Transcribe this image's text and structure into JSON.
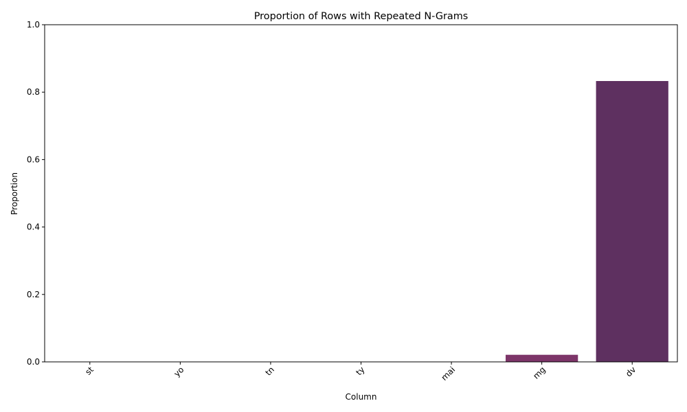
{
  "chart_data": {
    "type": "bar",
    "title": "Proportion of Rows with Repeated N-Grams",
    "xlabel": "Column",
    "ylabel": "Proportion",
    "categories": [
      "st",
      "yo",
      "tn",
      "ty",
      "mai",
      "mg",
      "dv"
    ],
    "values": [
      0.0,
      0.0,
      0.0,
      0.0,
      0.0,
      0.021,
      0.833
    ],
    "ylim": [
      0,
      1.0
    ],
    "yticks": [
      "0.0",
      "0.2",
      "0.4",
      "0.6",
      "0.8",
      "1.0"
    ],
    "bar_colors": [
      "#1a1530",
      "#2e1c45",
      "#421f55",
      "#55245f",
      "#692a66",
      "#7d3569",
      "#5e3060"
    ],
    "grid": false,
    "legend": "none"
  }
}
